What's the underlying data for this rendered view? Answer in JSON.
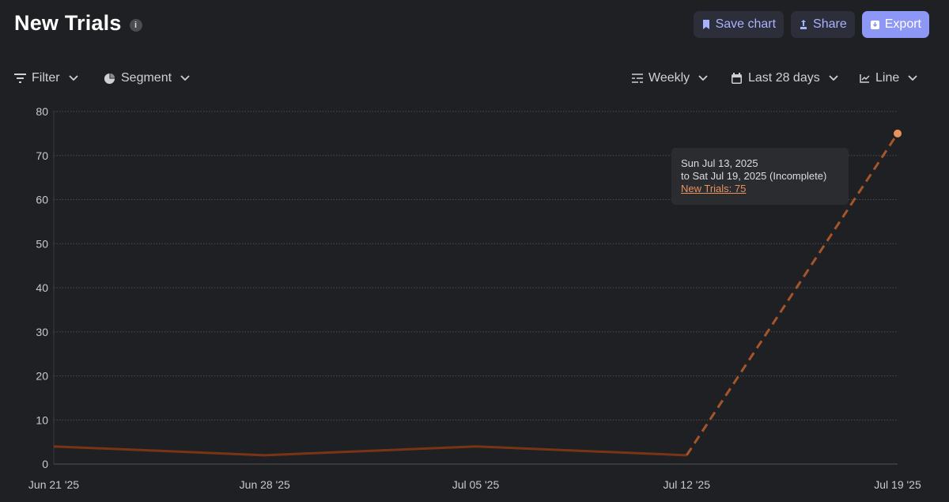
{
  "header": {
    "title": "New Trials",
    "info_glyph": "i",
    "save_label": "Save chart",
    "share_label": "Share",
    "export_label": "Export"
  },
  "toolbar": {
    "filter_label": "Filter",
    "segment_label": "Segment",
    "interval_label": "Weekly",
    "range_label": "Last 28 days",
    "chart_type_label": "Line"
  },
  "tooltip": {
    "line1": "Sun Jul 13, 2025",
    "line2": "to Sat Jul 19, 2025 (Incomplete)",
    "value_text": "New Trials: 75"
  },
  "colors": {
    "background": "#1f2023",
    "line": "#7a3314",
    "incomplete_line": "#a5552a",
    "point": "#e8925e",
    "accent": "#8d97f5"
  },
  "chart_data": {
    "type": "line",
    "title": "New Trials",
    "categories": [
      "Jun 21 '25",
      "Jun 28 '25",
      "Jul 05 '25",
      "Jul 12 '25",
      "Jul 19 '25"
    ],
    "series": [
      {
        "name": "New Trials",
        "values": [
          4,
          2,
          4,
          2,
          75
        ],
        "incomplete_from_index": 3
      }
    ],
    "ylim": [
      0,
      80
    ],
    "yticks": [
      0,
      10,
      20,
      30,
      40,
      50,
      60,
      70,
      80
    ],
    "ytick_labels": [
      "0",
      "10",
      "20",
      "30",
      "40",
      "50",
      "60",
      "70",
      "80"
    ],
    "highlighted_index": 4,
    "grid": true,
    "xlabel": "",
    "ylabel": ""
  }
}
